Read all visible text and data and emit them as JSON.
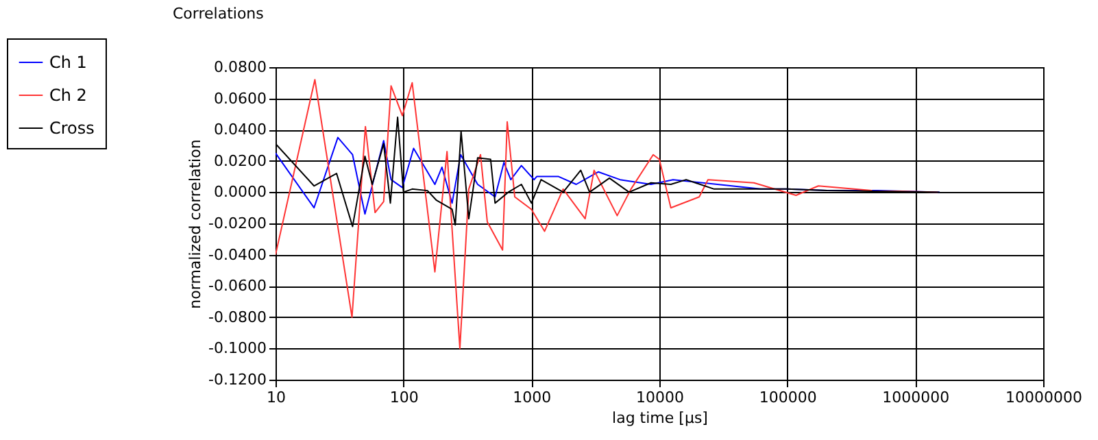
{
  "chart_data": {
    "type": "line",
    "title": "Correlations",
    "xlabel": "lag time [µs]",
    "ylabel": "normalized correlation",
    "log": "x",
    "grid": true,
    "legend": "top left",
    "line_style": "solid",
    "marker": "none",
    "xlim": [
      10,
      10000000
    ],
    "xticks": [
      10,
      100,
      1000,
      10000,
      100000,
      1000000,
      10000000
    ],
    "ylim": [
      -0.12,
      0.08
    ],
    "yticks": [
      {
        "value": -0.12,
        "label": "-0.1200"
      },
      {
        "value": -0.1,
        "label": "-0.1000"
      },
      {
        "value": -0.08,
        "label": "-0.0800"
      },
      {
        "value": -0.06,
        "label": "-0.0600"
      },
      {
        "value": -0.04,
        "label": "-0.0400"
      },
      {
        "value": -0.02,
        "label": "-0.0200"
      },
      {
        "value": 0,
        "label": "0.0000"
      },
      {
        "value": 0.02,
        "label": "0.0200"
      },
      {
        "value": 0.04,
        "label": "0.0400"
      },
      {
        "value": 0.06,
        "label": "0.0600"
      },
      {
        "value": 0.08,
        "label": "0.0800"
      }
    ],
    "series": [
      {
        "name": "Ch 1",
        "color": "#0000ff",
        "x": [
          10,
          20,
          30.7,
          40,
          50,
          70,
          80,
          98,
          120,
          176,
          200,
          240,
          280,
          380,
          520,
          610,
          690,
          835,
          1050,
          1100,
          1630,
          2240,
          3330,
          4930,
          8600,
          12800,
          28400,
          62000,
          100000,
          205000,
          510000,
          1550000
        ],
        "values": [
          0.025,
          -0.01,
          0.035,
          0.024,
          -0.014,
          0.033,
          0.008,
          0.003,
          0.028,
          0.005,
          0.016,
          -0.007,
          0.024,
          0.005,
          -0.003,
          0.019,
          0.008,
          0.017,
          0.008,
          0.01,
          0.01,
          0.005,
          0.013,
          0.008,
          0.005,
          0.008,
          0.005,
          0.002,
          0.002,
          0.001,
          0.001,
          0
        ]
      },
      {
        "name": "Ch 2",
        "color": "#ff3333",
        "x": [
          10,
          20.3,
          39.6,
          50.4,
          60,
          70,
          80,
          98,
          117,
          176,
          219,
          276,
          324,
          400,
          452,
          595,
          647,
          741,
          1000,
          1268,
          1770,
          2630,
          3090,
          4680,
          6000,
          8950,
          10000,
          12300,
          20500,
          24000,
          54800,
          117000,
          175000,
          460000,
          1500000
        ],
        "values": [
          -0.04,
          0.072,
          -0.08,
          0.042,
          -0.013,
          -0.006,
          0.068,
          0.049,
          0.07,
          -0.051,
          0.026,
          -0.1,
          0.002,
          0.024,
          -0.019,
          -0.037,
          0.045,
          -0.003,
          -0.011,
          -0.025,
          0.002,
          -0.017,
          0.014,
          -0.015,
          0.002,
          0.024,
          0.021,
          -0.01,
          -0.003,
          0.008,
          0.006,
          -0.002,
          0.004,
          0.001,
          0
        ]
      },
      {
        "name": "Cross",
        "color": "#000000",
        "x": [
          10,
          20,
          30,
          40,
          50,
          57,
          70,
          79,
          90,
          100,
          117,
          154,
          180,
          240,
          254,
          282,
          324,
          380,
          480,
          520,
          660,
          835,
          1000,
          1190,
          1770,
          2430,
          2850,
          4070,
          5800,
          8600,
          12300,
          16200,
          26800,
          67000,
          100000,
          205000,
          1550000
        ],
        "values": [
          0.031,
          0.004,
          0.012,
          -0.022,
          0.023,
          0.005,
          0.031,
          -0.007,
          0.048,
          0,
          0.002,
          0.001,
          -0.005,
          -0.011,
          -0.021,
          0.039,
          -0.017,
          0.022,
          0.021,
          -0.007,
          0,
          0.005,
          -0.007,
          0.008,
          0,
          0.014,
          0,
          0.009,
          0,
          0.006,
          0.005,
          0.008,
          0.002,
          0.002,
          0.002,
          0.001,
          0
        ]
      }
    ]
  }
}
